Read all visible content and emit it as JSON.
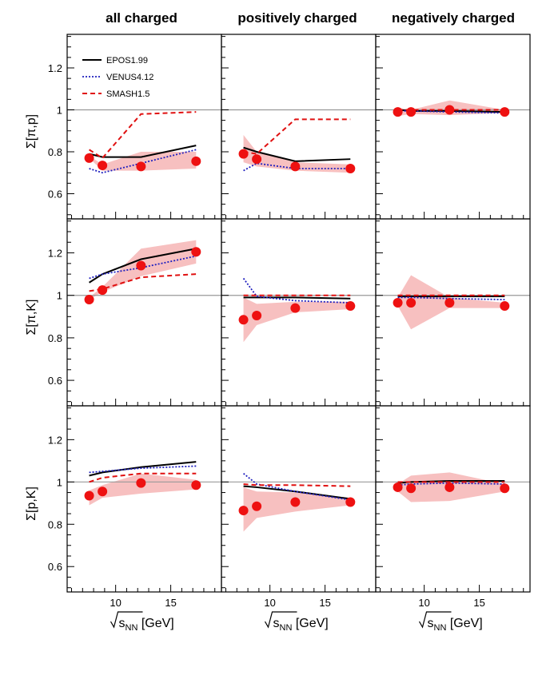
{
  "column_titles": [
    "all charged",
    "positively charged",
    "negatively charged"
  ],
  "row_ylabels": [
    {
      "base": "Σ[π,p]"
    },
    {
      "base": "Σ[π,K]"
    },
    {
      "base": "Σ[p,K]"
    }
  ],
  "xlabel": {
    "prefix": "s",
    "sub": "NN",
    "suffix": " [GeV]"
  },
  "x_ticks": [
    10,
    15
  ],
  "xlim": [
    5.6,
    19.6
  ],
  "y_ticks": [
    0.6,
    0.8,
    1,
    1.2
  ],
  "y_tick_labels": [
    "0.6",
    "0.8",
    "1",
    "1.2"
  ],
  "ylim": [
    0.48,
    1.36
  ],
  "reference_line": 1,
  "legend": [
    {
      "label": "EPOS1.99",
      "color": "#000000",
      "style": "solid"
    },
    {
      "label": "VENUS4.12",
      "color": "#1f1fbf",
      "style": "dotted"
    },
    {
      "label": "SMASH1.5",
      "color": "#e01010",
      "style": "dashed"
    }
  ],
  "colors": {
    "data_points": "#ee1111",
    "band": "#f7c0c0",
    "ref_line": "#999999"
  },
  "chart_data": {
    "type": "line",
    "x": [
      7.6,
      8.8,
      12.3,
      17.3
    ],
    "panels": [
      {
        "row": 0,
        "col": 0,
        "data": [
          0.77,
          0.735,
          0.73,
          0.755
        ],
        "band_low": [
          0.77,
          0.71,
          0.71,
          0.72
        ],
        "band_high": [
          0.78,
          0.74,
          0.8,
          0.8
        ],
        "epos": [
          0.79,
          0.775,
          0.775,
          0.83
        ],
        "venus": [
          0.72,
          0.7,
          0.745,
          0.81
        ],
        "smash": [
          0.81,
          0.77,
          0.98,
          0.99
        ]
      },
      {
        "row": 0,
        "col": 1,
        "data": [
          0.79,
          0.765,
          0.73,
          0.72
        ],
        "band_low": [
          0.75,
          0.73,
          0.71,
          0.7
        ],
        "band_high": [
          0.88,
          0.8,
          0.75,
          0.74
        ],
        "epos": [
          0.82,
          0.8,
          0.755,
          0.765
        ],
        "venus": [
          0.71,
          0.745,
          0.72,
          0.72
        ],
        "smash": [
          0.8,
          0.79,
          0.955,
          0.955
        ]
      },
      {
        "row": 0,
        "col": 2,
        "data": [
          0.99,
          0.99,
          1.0,
          0.99
        ],
        "band_low": [
          0.97,
          0.98,
          0.975,
          0.985
        ],
        "band_high": [
          1.01,
          1.0,
          1.045,
          1.0
        ],
        "epos": [
          1.0,
          0.995,
          0.995,
          0.99
        ],
        "venus": [
          0.995,
          0.995,
          0.99,
          0.985
        ],
        "smash": [
          1.0,
          1.0,
          1.0,
          1.0
        ]
      },
      {
        "row": 1,
        "col": 0,
        "data": [
          0.98,
          1.025,
          1.14,
          1.205
        ],
        "band_low": [
          0.98,
          1.015,
          1.09,
          1.15
        ],
        "band_high": [
          0.99,
          1.04,
          1.22,
          1.26
        ],
        "epos": [
          1.06,
          1.1,
          1.17,
          1.22
        ],
        "venus": [
          1.08,
          1.1,
          1.13,
          1.185
        ],
        "smash": [
          1.02,
          1.03,
          1.085,
          1.1
        ]
      },
      {
        "row": 1,
        "col": 1,
        "data": [
          0.885,
          0.905,
          0.94,
          0.95
        ],
        "band_low": [
          0.78,
          0.86,
          0.92,
          0.935
        ],
        "band_high": [
          0.99,
          0.96,
          0.97,
          0.97
        ],
        "epos": [
          0.99,
          0.99,
          0.99,
          0.985
        ],
        "venus": [
          1.08,
          0.995,
          0.975,
          0.965
        ],
        "smash": [
          1.0,
          1.0,
          1.0,
          1.0
        ]
      },
      {
        "row": 1,
        "col": 2,
        "data": [
          0.965,
          0.965,
          0.965,
          0.95
        ],
        "band_low": [
          0.95,
          0.84,
          0.94,
          0.94
        ],
        "band_high": [
          0.99,
          1.095,
          0.99,
          0.965
        ],
        "epos": [
          0.995,
          0.995,
          0.995,
          0.995
        ],
        "venus": [
          0.99,
          0.99,
          0.985,
          0.98
        ],
        "smash": [
          1.0,
          1.0,
          1.0,
          1.0
        ]
      },
      {
        "row": 2,
        "col": 0,
        "data": [
          0.935,
          0.955,
          0.995,
          0.985
        ],
        "band_low": [
          0.89,
          0.925,
          0.945,
          0.965
        ],
        "band_high": [
          0.96,
          0.985,
          1.04,
          1.01
        ],
        "epos": [
          1.03,
          1.045,
          1.07,
          1.095
        ],
        "venus": [
          1.045,
          1.05,
          1.065,
          1.075
        ],
        "smash": [
          1.0,
          1.02,
          1.04,
          1.04
        ]
      },
      {
        "row": 2,
        "col": 1,
        "data": [
          0.865,
          0.885,
          0.905,
          0.905
        ],
        "band_low": [
          0.765,
          0.83,
          0.86,
          0.89
        ],
        "band_high": [
          0.975,
          0.955,
          0.95,
          0.925
        ],
        "epos": [
          0.98,
          0.975,
          0.955,
          0.92
        ],
        "venus": [
          1.04,
          0.99,
          0.955,
          0.915
        ],
        "smash": [
          0.99,
          0.985,
          0.985,
          0.98
        ]
      },
      {
        "row": 2,
        "col": 2,
        "data": [
          0.975,
          0.97,
          0.975,
          0.97
        ],
        "band_low": [
          0.955,
          0.905,
          0.91,
          0.955
        ],
        "band_high": [
          0.99,
          1.03,
          1.045,
          0.99
        ],
        "epos": [
          0.995,
          1.0,
          1.005,
          1.005
        ],
        "venus": [
          0.985,
          0.99,
          0.995,
          0.99
        ],
        "smash": [
          1.0,
          1.0,
          1.0,
          1.0
        ]
      }
    ]
  }
}
